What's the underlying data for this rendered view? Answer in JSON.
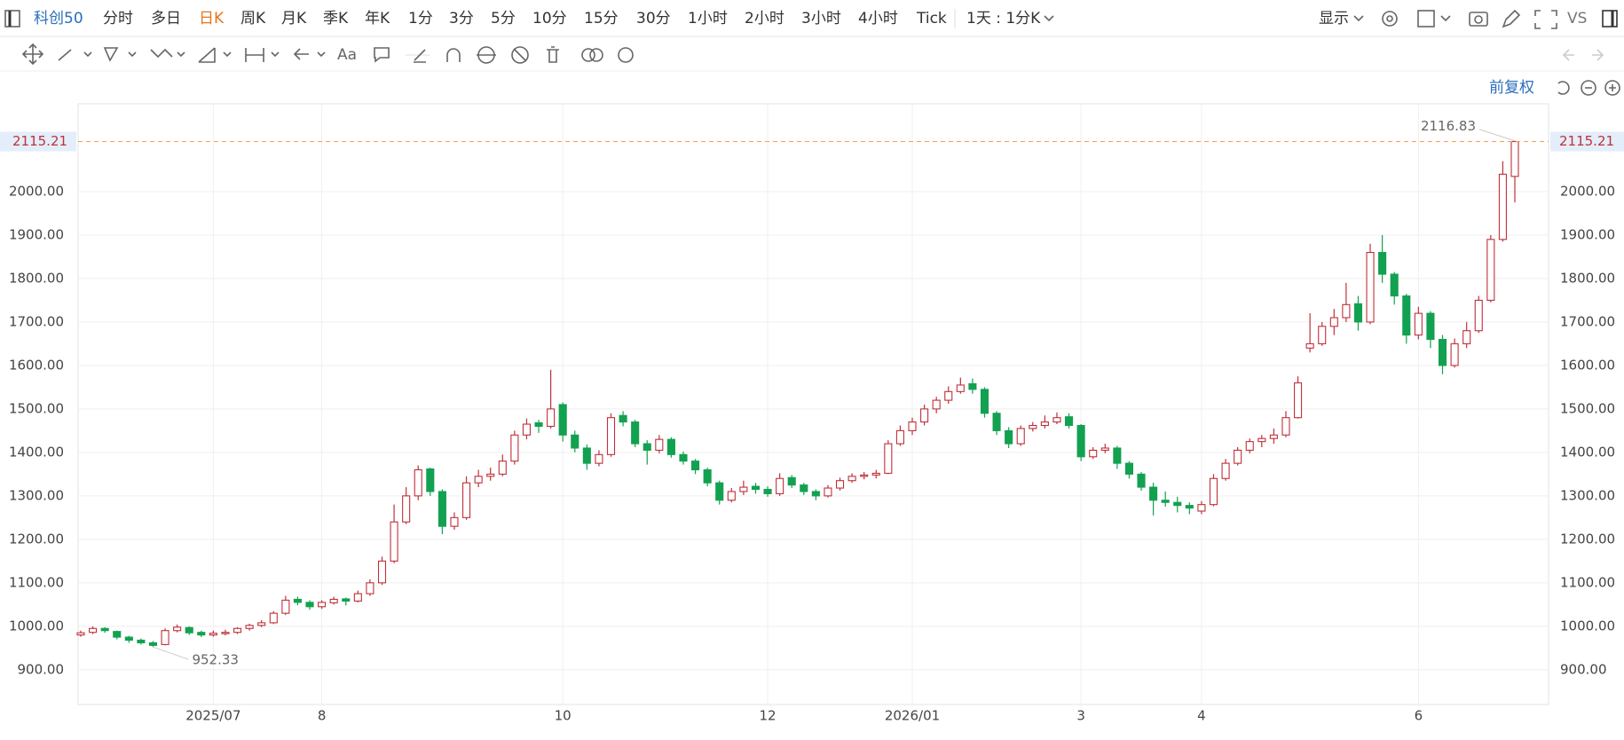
{
  "toolbar": {
    "symbol": "科创50",
    "periods": [
      "分时",
      "多日",
      "日K",
      "周K",
      "月K",
      "季K",
      "年K",
      "1分",
      "3分",
      "5分",
      "10分",
      "15分",
      "30分",
      "1小时",
      "2小时",
      "3小时",
      "4小时",
      "Tick"
    ],
    "active": 2,
    "range": "1天 : 1分K",
    "display": "显示",
    "compare": "VS",
    "text_tool": "Aa",
    "adjust": "前复权"
  },
  "chart_data": {
    "type": "candlestick",
    "up_color": "#c0303a",
    "down_color": "#12a150",
    "ylim": [
      820,
      2202
    ],
    "yticks": [
      {
        "value": 900,
        "label": "900.00"
      },
      {
        "value": 1000,
        "label": "1000.00"
      },
      {
        "value": 1100,
        "label": "1100.00"
      },
      {
        "value": 1200,
        "label": "1200.00"
      },
      {
        "value": 1300,
        "label": "1300.00"
      },
      {
        "value": 1400,
        "label": "1400.00"
      },
      {
        "value": 1500,
        "label": "1500.00"
      },
      {
        "value": 1600,
        "label": "1600.00"
      },
      {
        "value": 1700,
        "label": "1700.00"
      },
      {
        "value": 1800,
        "label": "1800.00"
      },
      {
        "value": 1900,
        "label": "1900.00"
      },
      {
        "value": 2000,
        "label": "2000.00"
      }
    ],
    "grid": true,
    "last_price": 2115.21,
    "high_annotation": 2116.83,
    "low_annotation": 952.33,
    "categories": [
      null,
      null,
      null,
      null,
      null,
      null,
      null,
      null,
      null,
      null,
      null,
      "2025/07",
      null,
      null,
      null,
      null,
      null,
      null,
      null,
      null,
      "8",
      null,
      null,
      null,
      null,
      null,
      null,
      null,
      null,
      null,
      null,
      null,
      null,
      null,
      null,
      null,
      null,
      null,
      null,
      null,
      "10",
      null,
      null,
      null,
      null,
      null,
      null,
      null,
      null,
      null,
      null,
      null,
      null,
      null,
      null,
      null,
      null,
      "12",
      null,
      null,
      null,
      null,
      null,
      null,
      null,
      null,
      null,
      null,
      null,
      "2026/01",
      null,
      null,
      null,
      null,
      null,
      null,
      null,
      null,
      null,
      null,
      null,
      null,
      null,
      "3",
      null,
      null,
      null,
      null,
      null,
      null,
      null,
      null,
      null,
      "4",
      null,
      null,
      null,
      null,
      null,
      null,
      null,
      null,
      null,
      null,
      null,
      null,
      null,
      null,
      null,
      null,
      null,
      "6",
      null,
      null,
      null,
      null,
      null,
      null,
      null,
      null
    ],
    "values": [
      [
        980,
        990,
        976,
        985
      ],
      [
        986,
        1000,
        982,
        995
      ],
      [
        995,
        998,
        985,
        990
      ],
      [
        988,
        990,
        970,
        975
      ],
      [
        975,
        978,
        962,
        968
      ],
      [
        968,
        972,
        958,
        962
      ],
      [
        962,
        966,
        952.33,
        956
      ],
      [
        958,
        995,
        956,
        990
      ],
      [
        990,
        1004,
        986,
        998
      ],
      [
        997,
        1000,
        980,
        985
      ],
      [
        986,
        990,
        975,
        980
      ],
      [
        980,
        990,
        976,
        984
      ],
      [
        983,
        992,
        979,
        986
      ],
      [
        986,
        998,
        982,
        995
      ],
      [
        995,
        1006,
        990,
        1002
      ],
      [
        1002,
        1014,
        998,
        1008
      ],
      [
        1008,
        1035,
        1005,
        1030
      ],
      [
        1030,
        1070,
        1026,
        1060
      ],
      [
        1062,
        1068,
        1048,
        1055
      ],
      [
        1055,
        1060,
        1038,
        1045
      ],
      [
        1045,
        1060,
        1040,
        1055
      ],
      [
        1054,
        1068,
        1050,
        1062
      ],
      [
        1063,
        1066,
        1048,
        1058
      ],
      [
        1058,
        1082,
        1055,
        1075
      ],
      [
        1075,
        1108,
        1070,
        1100
      ],
      [
        1100,
        1160,
        1095,
        1150
      ],
      [
        1150,
        1280,
        1145,
        1240
      ],
      [
        1240,
        1320,
        1235,
        1300
      ],
      [
        1300,
        1370,
        1290,
        1360
      ],
      [
        1362,
        1365,
        1300,
        1310
      ],
      [
        1310,
        1315,
        1212,
        1230
      ],
      [
        1230,
        1262,
        1222,
        1250
      ],
      [
        1250,
        1345,
        1245,
        1330
      ],
      [
        1330,
        1360,
        1320,
        1345
      ],
      [
        1345,
        1365,
        1335,
        1350
      ],
      [
        1350,
        1395,
        1345,
        1380
      ],
      [
        1380,
        1450,
        1372,
        1440
      ],
      [
        1440,
        1478,
        1430,
        1465
      ],
      [
        1468,
        1475,
        1445,
        1460
      ],
      [
        1460,
        1590,
        1455,
        1500
      ],
      [
        1510,
        1515,
        1425,
        1440
      ],
      [
        1440,
        1450,
        1400,
        1410
      ],
      [
        1410,
        1418,
        1360,
        1375
      ],
      [
        1375,
        1405,
        1368,
        1395
      ],
      [
        1395,
        1490,
        1390,
        1480
      ],
      [
        1485,
        1495,
        1460,
        1470
      ],
      [
        1470,
        1475,
        1412,
        1420
      ],
      [
        1420,
        1428,
        1372,
        1405
      ],
      [
        1405,
        1440,
        1398,
        1430
      ],
      [
        1430,
        1435,
        1388,
        1395
      ],
      [
        1395,
        1402,
        1372,
        1380
      ],
      [
        1380,
        1385,
        1350,
        1360
      ],
      [
        1360,
        1365,
        1322,
        1330
      ],
      [
        1330,
        1335,
        1280,
        1290
      ],
      [
        1290,
        1318,
        1285,
        1310
      ],
      [
        1310,
        1335,
        1302,
        1320
      ],
      [
        1322,
        1330,
        1305,
        1315
      ],
      [
        1315,
        1322,
        1298,
        1305
      ],
      [
        1305,
        1352,
        1300,
        1340
      ],
      [
        1342,
        1348,
        1318,
        1325
      ],
      [
        1325,
        1330,
        1302,
        1310
      ],
      [
        1310,
        1315,
        1290,
        1300
      ],
      [
        1300,
        1325,
        1296,
        1318
      ],
      [
        1318,
        1342,
        1312,
        1335
      ],
      [
        1335,
        1352,
        1330,
        1345
      ],
      [
        1345,
        1355,
        1338,
        1348
      ],
      [
        1348,
        1360,
        1340,
        1352
      ],
      [
        1352,
        1428,
        1350,
        1420
      ],
      [
        1420,
        1462,
        1415,
        1450
      ],
      [
        1450,
        1480,
        1440,
        1470
      ],
      [
        1470,
        1510,
        1462,
        1500
      ],
      [
        1500,
        1528,
        1490,
        1520
      ],
      [
        1520,
        1552,
        1512,
        1540
      ],
      [
        1540,
        1572,
        1535,
        1555
      ],
      [
        1558,
        1570,
        1535,
        1545
      ],
      [
        1545,
        1550,
        1480,
        1490
      ],
      [
        1490,
        1495,
        1440,
        1450
      ],
      [
        1450,
        1458,
        1410,
        1420
      ],
      [
        1420,
        1462,
        1415,
        1455
      ],
      [
        1455,
        1470,
        1448,
        1462
      ],
      [
        1462,
        1485,
        1455,
        1470
      ],
      [
        1470,
        1492,
        1465,
        1480
      ],
      [
        1482,
        1490,
        1455,
        1462
      ],
      [
        1462,
        1465,
        1380,
        1390
      ],
      [
        1390,
        1412,
        1385,
        1405
      ],
      [
        1405,
        1420,
        1398,
        1410
      ],
      [
        1410,
        1415,
        1362,
        1375
      ],
      [
        1375,
        1380,
        1340,
        1350
      ],
      [
        1350,
        1355,
        1312,
        1320
      ],
      [
        1320,
        1330,
        1255,
        1290
      ],
      [
        1290,
        1310,
        1275,
        1285
      ],
      [
        1285,
        1298,
        1262,
        1278
      ],
      [
        1278,
        1285,
        1258,
        1272
      ],
      [
        1265,
        1288,
        1258,
        1280
      ],
      [
        1280,
        1350,
        1276,
        1340
      ],
      [
        1340,
        1385,
        1335,
        1375
      ],
      [
        1375,
        1412,
        1370,
        1405
      ],
      [
        1405,
        1432,
        1398,
        1425
      ],
      [
        1425,
        1440,
        1412,
        1432
      ],
      [
        1432,
        1455,
        1420,
        1440
      ],
      [
        1440,
        1495,
        1435,
        1480
      ],
      [
        1480,
        1575,
        1478,
        1560
      ],
      [
        1640,
        1720,
        1630,
        1650
      ],
      [
        1650,
        1700,
        1645,
        1690
      ],
      [
        1690,
        1730,
        1670,
        1710
      ],
      [
        1710,
        1790,
        1700,
        1740
      ],
      [
        1742,
        1760,
        1680,
        1700
      ],
      [
        1700,
        1880,
        1695,
        1860
      ],
      [
        1860,
        1900,
        1790,
        1810
      ],
      [
        1810,
        1815,
        1740,
        1760
      ],
      [
        1760,
        1765,
        1650,
        1670
      ],
      [
        1670,
        1735,
        1660,
        1720
      ],
      [
        1720,
        1725,
        1640,
        1660
      ],
      [
        1660,
        1670,
        1580,
        1600
      ],
      [
        1600,
        1662,
        1595,
        1650
      ],
      [
        1650,
        1700,
        1640,
        1680
      ],
      [
        1680,
        1760,
        1675,
        1750
      ],
      [
        1750,
        1900,
        1745,
        1890
      ],
      [
        1890,
        2070,
        1885,
        2040
      ],
      [
        2035,
        2116.83,
        1975,
        2115.21
      ]
    ]
  }
}
